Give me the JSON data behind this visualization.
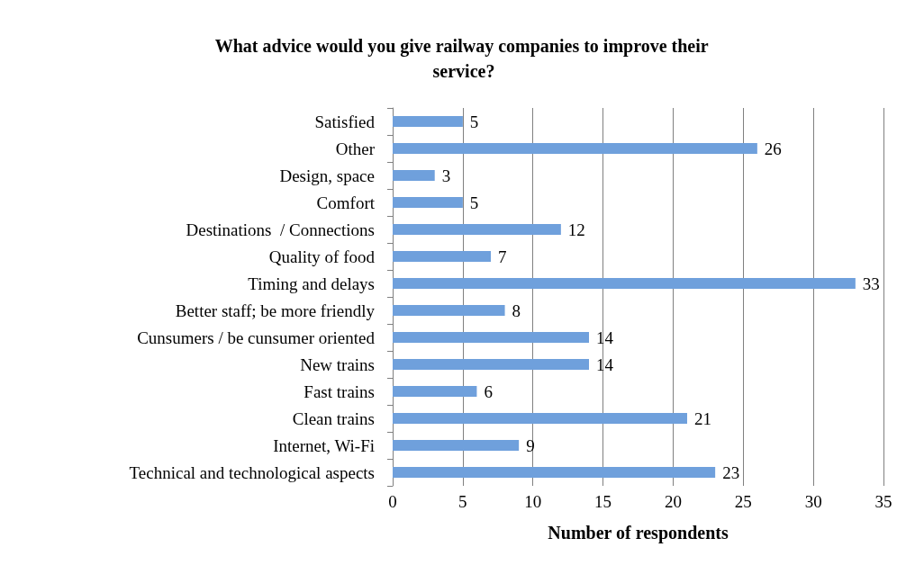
{
  "chart_data": {
    "type": "bar",
    "orientation": "horizontal",
    "title": "What advice would you give railway companies to improve their service?",
    "xlabel": "Number of respondents",
    "categories": [
      "Satisfied",
      "Other",
      "Design, space",
      "Comfort",
      "Destinations  / Connections",
      "Quality of food",
      "Timing and delays",
      "Better staff; be more friendly",
      "Cunsumers / be cunsumer oriented",
      "New trains",
      "Fast trains",
      "Clean trains",
      "Internet, Wi-Fi",
      "Technical and technological aspects"
    ],
    "values": [
      5,
      26,
      3,
      5,
      12,
      7,
      33,
      8,
      14,
      14,
      6,
      21,
      9,
      23
    ],
    "color": "#6fa0dc",
    "xlim": [
      0,
      35
    ],
    "xticks": [
      0,
      5,
      10,
      15,
      20,
      25,
      30,
      35
    ],
    "grid": "x",
    "data_labels": true
  }
}
